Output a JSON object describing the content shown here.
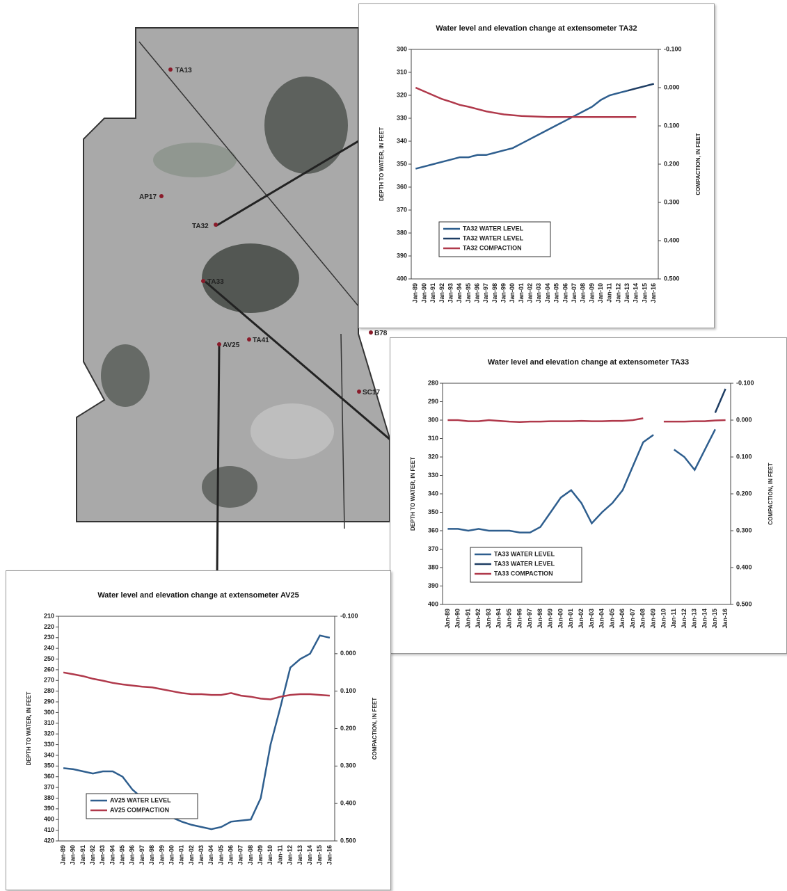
{
  "map": {
    "stations": [
      {
        "name": "TA13"
      },
      {
        "name": "AP17"
      },
      {
        "name": "TA32"
      },
      {
        "name": "TA33"
      },
      {
        "name": "AV25"
      },
      {
        "name": "TA41"
      },
      {
        "name": "B78"
      },
      {
        "name": "SC17"
      }
    ]
  },
  "chart_data": [
    {
      "type": "line",
      "title": "Water level and elevation change at extensometer TA32",
      "y_label": "DEPTH TO WATER, IN FEET",
      "y2_label": "COMPACTION, IN FEET",
      "categories": [
        "Jan-89",
        "Jan-90",
        "Jan-91",
        "Jan-92",
        "Jan-93",
        "Jan-94",
        "Jan-95",
        "Jan-96",
        "Jan-97",
        "Jan-98",
        "Jan-99",
        "Jan-00",
        "Jan-01",
        "Jan-02",
        "Jan-03",
        "Jan-04",
        "Jan-05",
        "Jan-06",
        "Jan-07",
        "Jan-08",
        "Jan-09",
        "Jan-10",
        "Jan-11",
        "Jan-12",
        "Jan-13",
        "Jan-14",
        "Jan-15",
        "Jan-16"
      ],
      "ylim": [
        300,
        400
      ],
      "y_inverted": true,
      "yticks": [
        300,
        310,
        320,
        330,
        340,
        350,
        360,
        370,
        380,
        390,
        400
      ],
      "y2lim": [
        -0.1,
        0.5
      ],
      "y2_inverted": true,
      "y2ticks": [
        {
          "value": -0.1,
          "label": "-0.100"
        },
        {
          "value": 0,
          "label": "0.000"
        },
        {
          "value": 0.1,
          "label": "0.100"
        },
        {
          "value": 0.2,
          "label": "0.200"
        },
        {
          "value": 0.3,
          "label": "0.300"
        },
        {
          "value": 0.4,
          "label": "0.400"
        },
        {
          "value": 0.5,
          "label": "0.500"
        }
      ],
      "legend": "lower left",
      "series": [
        {
          "name": "TA32 WATER LEVEL",
          "color": "#2e5e8e",
          "values": [
            352,
            351,
            350,
            349,
            348,
            347,
            347,
            346,
            346,
            345,
            344,
            343,
            341,
            339,
            337,
            335,
            333,
            331,
            329,
            327,
            325,
            322,
            320,
            319,
            318,
            null,
            null,
            null
          ]
        },
        {
          "name": "TA32 WATER LEVEL",
          "color": "#1e3d63",
          "values": [
            null,
            null,
            null,
            null,
            null,
            null,
            null,
            null,
            null,
            null,
            null,
            null,
            null,
            null,
            null,
            null,
            null,
            null,
            null,
            null,
            null,
            null,
            null,
            null,
            318,
            317,
            316,
            315
          ]
        },
        {
          "name": "TA32 COMPACTION",
          "color": "#b0394b",
          "axis": "y2",
          "values": [
            0.0,
            0.01,
            0.02,
            0.03,
            0.037,
            0.045,
            0.05,
            0.056,
            0.062,
            0.066,
            0.07,
            0.072,
            0.074,
            0.075,
            0.076,
            0.077,
            0.077,
            0.077,
            0.077,
            0.077,
            0.077,
            0.077,
            0.077,
            0.077,
            0.077,
            0.077,
            null,
            0.076
          ]
        }
      ]
    },
    {
      "type": "line",
      "title": "Water level and elevation change at extensometer TA33",
      "y_label": "DEPTH TO WATER, IN FEET",
      "y2_label": "COMPACTION, IN FEET",
      "categories": [
        "Jan-89",
        "Jan-90",
        "Jan-91",
        "Jan-92",
        "Jan-93",
        "Jan-94",
        "Jan-95",
        "Jan-96",
        "Jan-97",
        "Jan-98",
        "Jan-99",
        "Jan-00",
        "Jan-01",
        "Jan-02",
        "Jan-03",
        "Jan-04",
        "Jan-05",
        "Jan-06",
        "Jan-07",
        "Jan-08",
        "Jan-09",
        "Jan-10",
        "Jan-11",
        "Jan-12",
        "Jan-13",
        "Jan-14",
        "Jan-15",
        "Jan-16"
      ],
      "ylim": [
        280,
        400
      ],
      "y_inverted": true,
      "yticks": [
        280,
        290,
        300,
        310,
        320,
        330,
        340,
        350,
        360,
        370,
        380,
        390,
        400
      ],
      "y2lim": [
        -0.1,
        0.5
      ],
      "y2_inverted": true,
      "y2ticks": [
        {
          "value": -0.1,
          "label": "-0.100"
        },
        {
          "value": 0,
          "label": "0.000"
        },
        {
          "value": 0.1,
          "label": "0.100"
        },
        {
          "value": 0.2,
          "label": "0.200"
        },
        {
          "value": 0.3,
          "label": "0.300"
        },
        {
          "value": 0.4,
          "label": "0.400"
        },
        {
          "value": 0.5,
          "label": "0.500"
        }
      ],
      "legend": "lower left",
      "series": [
        {
          "name": "TA33 WATER LEVEL",
          "color": "#2e5e8e",
          "values": [
            359,
            359,
            360,
            359,
            360,
            360,
            360,
            361,
            361,
            358,
            350,
            342,
            338,
            345,
            356,
            350,
            345,
            338,
            325,
            312,
            308,
            null,
            316,
            320,
            327,
            316,
            305,
            null
          ]
        },
        {
          "name": "TA33 WATER LEVEL",
          "color": "#1e3d63",
          "values": [
            null,
            null,
            null,
            null,
            null,
            null,
            null,
            null,
            null,
            null,
            null,
            null,
            null,
            null,
            null,
            null,
            null,
            null,
            null,
            null,
            null,
            null,
            null,
            null,
            null,
            null,
            296,
            283
          ]
        },
        {
          "name": "TA33 COMPACTION",
          "color": "#b0394b",
          "axis": "y2",
          "values": [
            0.0,
            0.0,
            0.003,
            0.003,
            0.0,
            0.002,
            0.004,
            0.005,
            0.004,
            0.004,
            0.003,
            0.003,
            0.003,
            0.002,
            0.003,
            0.003,
            0.002,
            0.002,
            0.0,
            -0.005,
            null,
            0.004,
            0.004,
            0.004,
            0.003,
            0.003,
            0.001,
            0.0
          ]
        }
      ]
    },
    {
      "type": "line",
      "title": "Water level and elevation change at extensometer AV25",
      "y_label": "DEPTH TO WATER, IN FEET",
      "y2_label": "COMPACTION, IN FEET",
      "categories": [
        "Jan-89",
        "Jan-90",
        "Jan-91",
        "Jan-92",
        "Jan-93",
        "Jan-94",
        "Jan-95",
        "Jan-96",
        "Jan-97",
        "Jan-98",
        "Jan-99",
        "Jan-00",
        "Jan-01",
        "Jan-02",
        "Jan-03",
        "Jan-04",
        "Jan-05",
        "Jan-06",
        "Jan-07",
        "Jan-08",
        "Jan-09",
        "Jan-10",
        "Jan-11",
        "Jan-12",
        "Jan-13",
        "Jan-14",
        "Jan-15",
        "Jan-16"
      ],
      "ylim": [
        210,
        420
      ],
      "y_inverted": true,
      "yticks": [
        210,
        220,
        230,
        240,
        250,
        260,
        270,
        280,
        290,
        300,
        310,
        320,
        330,
        340,
        350,
        360,
        370,
        380,
        390,
        400,
        410,
        420
      ],
      "y2lim": [
        -0.1,
        0.5
      ],
      "y2_inverted": true,
      "y2ticks": [
        {
          "value": -0.1,
          "label": "-0.100"
        },
        {
          "value": 0,
          "label": "0.000"
        },
        {
          "value": 0.1,
          "label": "0.100"
        },
        {
          "value": 0.2,
          "label": "0.200"
        },
        {
          "value": 0.3,
          "label": "0.300"
        },
        {
          "value": 0.4,
          "label": "0.400"
        },
        {
          "value": 0.5,
          "label": "0.500"
        }
      ],
      "legend": "lower left",
      "series": [
        {
          "name": "AV25 WATER LEVEL",
          "color": "#2e5e8e",
          "values": [
            352,
            353,
            355,
            357,
            355,
            355,
            360,
            372,
            380,
            385,
            392,
            398,
            402,
            405,
            407,
            409,
            407,
            402,
            401,
            400,
            380,
            330,
            295,
            258,
            250,
            245,
            228,
            230
          ]
        },
        {
          "name": "AV25 COMPACTION",
          "color": "#b0394b",
          "axis": "y2",
          "values": [
            0.05,
            0.055,
            0.06,
            0.067,
            0.072,
            0.078,
            0.082,
            0.085,
            0.088,
            0.09,
            0.095,
            0.1,
            0.105,
            0.108,
            0.108,
            0.11,
            0.11,
            0.105,
            0.112,
            0.115,
            0.12,
            0.122,
            0.115,
            0.11,
            0.108,
            0.108,
            0.11,
            0.112
          ]
        }
      ]
    }
  ]
}
